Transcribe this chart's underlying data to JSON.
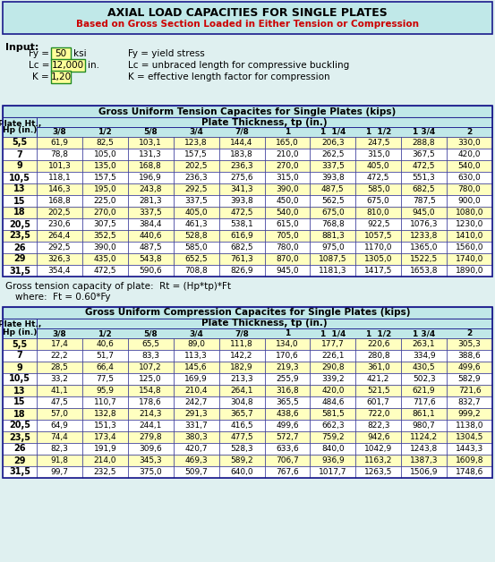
{
  "title": "AXIAL LOAD CAPACITIES FOR SINGLE PLATES",
  "subtitle": "Based on Gross Section Loaded in Either Tension or Compression",
  "input_label": "Input:",
  "inputs": [
    {
      "label": "Fy =",
      "value": "50",
      "unit": "ksi",
      "desc": "Fy = yield stress"
    },
    {
      "label": "Lc =",
      "value": "12,000",
      "unit": "in.",
      "desc": "Lc = unbraced length for compressive buckling"
    },
    {
      "label": "K =",
      "value": "1,20",
      "unit": "",
      "desc": "K = effective length factor for compression"
    }
  ],
  "tension_title": "Gross Uniform Tension Capacites for Single Plates (kips)",
  "compression_title": "Gross Uniform Compression Capacites for Single Plates (kips)",
  "thickness_header": "Plate Thickness, tp (in.)",
  "plate_ht_header_1": "Plate Ht.,",
  "plate_ht_header_2": "Hp (in.)",
  "thickness_cols": [
    "3/8",
    "1/2",
    "5/8",
    "3/4",
    "7/8",
    "1",
    "1  1/4",
    "1  1/2",
    "1 3/4",
    "2"
  ],
  "hp_display": [
    "5,5",
    "7",
    "9",
    "10,5",
    "13",
    "15",
    "18",
    "20,5",
    "23,5",
    "26",
    "29",
    "31,5"
  ],
  "tension_data": [
    [
      61.9,
      82.5,
      103.1,
      123.8,
      144.4,
      165.0,
      206.3,
      247.5,
      288.8,
      330.0
    ],
    [
      78.8,
      105.0,
      131.3,
      157.5,
      183.8,
      210.0,
      262.5,
      315.0,
      367.5,
      420.0
    ],
    [
      101.3,
      135.0,
      168.8,
      202.5,
      236.3,
      270.0,
      337.5,
      405.0,
      472.5,
      540.0
    ],
    [
      118.1,
      157.5,
      196.9,
      236.3,
      275.6,
      315.0,
      393.8,
      472.5,
      551.3,
      630.0
    ],
    [
      146.3,
      195.0,
      243.8,
      292.5,
      341.3,
      390.0,
      487.5,
      585.0,
      682.5,
      780.0
    ],
    [
      168.8,
      225.0,
      281.3,
      337.5,
      393.8,
      450.0,
      562.5,
      675.0,
      787.5,
      900.0
    ],
    [
      202.5,
      270.0,
      337.5,
      405.0,
      472.5,
      540.0,
      675.0,
      810.0,
      945.0,
      1080.0
    ],
    [
      230.6,
      307.5,
      384.4,
      461.3,
      538.1,
      615.0,
      768.8,
      922.5,
      1076.3,
      1230.0
    ],
    [
      264.4,
      352.5,
      440.6,
      528.8,
      616.9,
      705.0,
      881.3,
      1057.5,
      1233.8,
      1410.0
    ],
    [
      292.5,
      390.0,
      487.5,
      585.0,
      682.5,
      780.0,
      975.0,
      1170.0,
      1365.0,
      1560.0
    ],
    [
      326.3,
      435.0,
      543.8,
      652.5,
      761.3,
      870.0,
      1087.5,
      1305.0,
      1522.5,
      1740.0
    ],
    [
      354.4,
      472.5,
      590.6,
      708.8,
      826.9,
      945.0,
      1181.3,
      1417.5,
      1653.8,
      1890.0
    ]
  ],
  "compression_data": [
    [
      17.4,
      40.6,
      65.5,
      89.0,
      111.8,
      134.0,
      177.7,
      220.6,
      263.1,
      305.3
    ],
    [
      22.2,
      51.7,
      83.3,
      113.3,
      142.2,
      170.6,
      226.1,
      280.8,
      334.9,
      388.6
    ],
    [
      28.5,
      66.4,
      107.2,
      145.6,
      182.9,
      219.3,
      290.8,
      361.0,
      430.5,
      499.6
    ],
    [
      33.2,
      77.5,
      125.0,
      169.9,
      213.3,
      255.9,
      339.2,
      421.2,
      502.3,
      582.9
    ],
    [
      41.1,
      95.9,
      154.8,
      210.4,
      264.1,
      316.8,
      420.0,
      521.5,
      621.9,
      721.6
    ],
    [
      47.5,
      110.7,
      178.6,
      242.7,
      304.8,
      365.5,
      484.6,
      601.7,
      717.6,
      832.7
    ],
    [
      57.0,
      132.8,
      214.3,
      291.3,
      365.7,
      438.6,
      581.5,
      722.0,
      861.1,
      999.2
    ],
    [
      64.9,
      151.3,
      244.1,
      331.7,
      416.5,
      499.6,
      662.3,
      822.3,
      980.7,
      1138.0
    ],
    [
      74.4,
      173.4,
      279.8,
      380.3,
      477.5,
      572.7,
      759.2,
      942.6,
      1124.2,
      1304.5
    ],
    [
      82.3,
      191.9,
      309.6,
      420.7,
      528.3,
      633.6,
      840.0,
      1042.9,
      1243.8,
      1443.3
    ],
    [
      91.8,
      214.0,
      345.3,
      469.3,
      589.2,
      706.7,
      936.9,
      1163.2,
      1387.3,
      1609.8
    ],
    [
      99.7,
      232.5,
      375.0,
      509.7,
      640.0,
      767.6,
      1017.7,
      1263.5,
      1506.9,
      1748.6
    ]
  ],
  "tension_formula": "Gross tension capacity of plate:  Rt = (Hp*tp)*Ft",
  "tension_formula2": "where:  Ft = 0.60*Fy",
  "bg_color": "#dff0f0",
  "title_bg": "#c0e8e8",
  "header_bg": "#c0e8e8",
  "row_bg_odd": "#ffffc0",
  "row_bg_even": "#ffffff",
  "input_box_fill": "#ffff99",
  "input_box_edge": "#228B22",
  "border_color": "#1a1a8c",
  "text_dark": "#000000",
  "subtitle_color": "#cc0000"
}
